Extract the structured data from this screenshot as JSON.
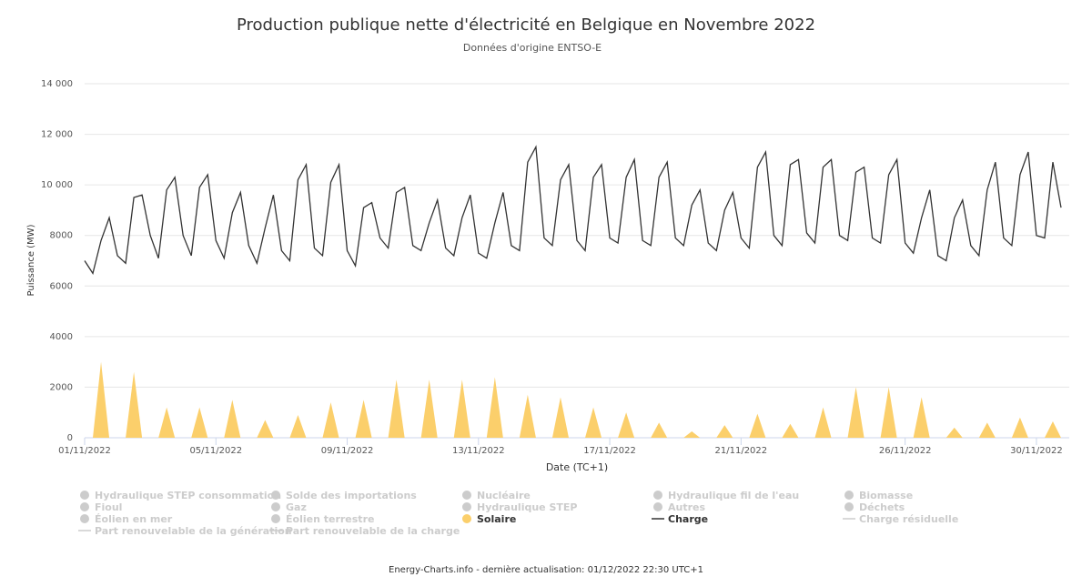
{
  "chart_data": {
    "type": "line",
    "title": "Production publique nette d'électricité en Belgique en Novembre 2022",
    "subtitle": "Données d'origine ENTSO-E",
    "xlabel": "Date (TC+1)",
    "ylabel": "Puissance (MW)",
    "footer": "Energy-Charts.info - dernière actualisation: 01/12/2022 22:30 UTC+1",
    "grid": true,
    "xlim": [
      1,
      31
    ],
    "xticks": [
      {
        "value": 1,
        "label": "01/11/2022"
      },
      {
        "value": 5,
        "label": "05/11/2022"
      },
      {
        "value": 9,
        "label": "09/11/2022"
      },
      {
        "value": 13,
        "label": "13/11/2022"
      },
      {
        "value": 17,
        "label": "17/11/2022"
      },
      {
        "value": 21,
        "label": "21/11/2022"
      },
      {
        "value": 26,
        "label": "26/11/2022"
      },
      {
        "value": 30,
        "label": "30/11/2022"
      }
    ],
    "ylim": [
      0,
      14000
    ],
    "yticks": [
      0,
      {
        "value": 2000,
        "label": "2000"
      },
      {
        "value": 4000,
        "label": "4000"
      },
      {
        "value": 6000,
        "label": "6000"
      },
      {
        "value": 8000,
        "label": "8000"
      },
      {
        "value": 10000,
        "label": "10 000"
      },
      {
        "value": 12000,
        "label": "12 000"
      },
      {
        "value": 14000,
        "label": "14 000"
      }
    ],
    "x": [
      1,
      1.25,
      1.5,
      1.75,
      2,
      2.25,
      2.5,
      2.75,
      3,
      3.25,
      3.5,
      3.75,
      4,
      4.25,
      4.5,
      4.75,
      5,
      5.25,
      5.5,
      5.75,
      6,
      6.25,
      6.5,
      6.75,
      7,
      7.25,
      7.5,
      7.75,
      8,
      8.25,
      8.5,
      8.75,
      9,
      9.25,
      9.5,
      9.75,
      10,
      10.25,
      10.5,
      10.75,
      11,
      11.25,
      11.5,
      11.75,
      12,
      12.25,
      12.5,
      12.75,
      13,
      13.25,
      13.5,
      13.75,
      14,
      14.25,
      14.5,
      14.75,
      15,
      15.25,
      15.5,
      15.75,
      16,
      16.25,
      16.5,
      16.75,
      17,
      17.25,
      17.5,
      17.75,
      18,
      18.25,
      18.5,
      18.75,
      19,
      19.25,
      19.5,
      19.75,
      20,
      20.25,
      20.5,
      20.75,
      21,
      21.25,
      21.5,
      21.75,
      22,
      22.25,
      22.5,
      22.75,
      23,
      23.25,
      23.5,
      23.75,
      24,
      24.25,
      24.5,
      24.75,
      25,
      25.25,
      25.5,
      25.75,
      26,
      26.25,
      26.5,
      26.75,
      27,
      27.25,
      27.5,
      27.75,
      28,
      28.25,
      28.5,
      28.75,
      29,
      29.25,
      29.5,
      29.75,
      30,
      30.25,
      30.5,
      30.75
    ],
    "series": [
      {
        "name": "Hydraulique STEP consommation",
        "marker": "dot",
        "visible": false,
        "color": "#cccccc"
      },
      {
        "name": "Solde des importations",
        "marker": "dot",
        "visible": false,
        "color": "#cccccc"
      },
      {
        "name": "Nucléaire",
        "marker": "dot",
        "visible": false,
        "color": "#cccccc"
      },
      {
        "name": "Hydraulique fil de l'eau",
        "marker": "dot",
        "visible": false,
        "color": "#cccccc"
      },
      {
        "name": "Biomasse",
        "marker": "dot",
        "visible": false,
        "color": "#cccccc"
      },
      {
        "name": "Fioul",
        "marker": "dot",
        "visible": false,
        "color": "#cccccc"
      },
      {
        "name": "Gaz",
        "marker": "dot",
        "visible": false,
        "color": "#cccccc"
      },
      {
        "name": "Hydraulique STEP",
        "marker": "dot",
        "visible": false,
        "color": "#cccccc"
      },
      {
        "name": "Autres",
        "marker": "dot",
        "visible": false,
        "color": "#cccccc"
      },
      {
        "name": "Déchets",
        "marker": "dot",
        "visible": false,
        "color": "#cccccc"
      },
      {
        "name": "Éolien en mer",
        "marker": "dot",
        "visible": false,
        "color": "#cccccc"
      },
      {
        "name": "Éolien terrestre",
        "marker": "dot",
        "visible": false,
        "color": "#cccccc"
      },
      {
        "name": "Solaire",
        "marker": "dot",
        "visible": true,
        "color": "#fbcf6b",
        "kind": "area",
        "values": [
          0,
          0,
          3000,
          0,
          0,
          0,
          2600,
          0,
          0,
          0,
          1200,
          0,
          0,
          0,
          1200,
          0,
          0,
          0,
          1500,
          0,
          0,
          0,
          700,
          0,
          0,
          0,
          900,
          0,
          0,
          0,
          1400,
          0,
          0,
          0,
          1500,
          0,
          0,
          0,
          2300,
          0,
          0,
          0,
          2300,
          0,
          0,
          0,
          2300,
          0,
          0,
          0,
          2400,
          0,
          0,
          0,
          1700,
          0,
          0,
          0,
          1600,
          0,
          0,
          0,
          1200,
          0,
          0,
          0,
          1000,
          0,
          0,
          0,
          600,
          0,
          0,
          0,
          250,
          0,
          0,
          0,
          500,
          0,
          0,
          0,
          950,
          0,
          0,
          0,
          550,
          0,
          0,
          0,
          1200,
          0,
          0,
          0,
          2000,
          0,
          0,
          0,
          2000,
          0,
          0,
          0,
          1600,
          0,
          0,
          0,
          400,
          0,
          0,
          0,
          600,
          0,
          0,
          0,
          800,
          0,
          0,
          0,
          650,
          0
        ]
      },
      {
        "name": "Charge",
        "marker": "line",
        "visible": true,
        "color": "#333333",
        "kind": "line",
        "values": [
          7000,
          6500,
          7800,
          8700,
          7200,
          6900,
          9500,
          9600,
          8000,
          7100,
          9800,
          10300,
          8000,
          7200,
          9900,
          10400,
          7800,
          7100,
          8900,
          9700,
          7600,
          6900,
          8300,
          9600,
          7400,
          7000,
          10200,
          10800,
          7500,
          7200,
          10100,
          10800,
          7400,
          6800,
          9100,
          9300,
          7900,
          7500,
          9700,
          9900,
          7600,
          7400,
          8500,
          9400,
          7500,
          7200,
          8700,
          9600,
          7300,
          7100,
          8500,
          9700,
          7600,
          7400,
          10900,
          11500,
          7900,
          7600,
          10200,
          10800,
          7800,
          7400,
          10300,
          10800,
          7900,
          7700,
          10300,
          11000,
          7800,
          7600,
          10300,
          10900,
          7900,
          7600,
          9200,
          9800,
          7700,
          7400,
          9000,
          9700,
          7900,
          7500,
          10700,
          11300,
          8000,
          7600,
          10800,
          11000,
          8100,
          7700,
          10700,
          11000,
          8000,
          7800,
          10500,
          10700,
          7900,
          7700,
          10400,
          11000,
          7700,
          7300,
          8700,
          9800,
          7200,
          7000,
          8700,
          9400,
          7600,
          7200,
          9800,
          10900,
          7900,
          7600,
          10400,
          11300,
          8000,
          7900,
          10900,
          9100
        ]
      },
      {
        "name": "Charge résiduelle",
        "marker": "line",
        "visible": false,
        "color": "#cccccc"
      },
      {
        "name": "Part renouvelable de la génération",
        "marker": "line",
        "visible": false,
        "color": "#cccccc"
      },
      {
        "name": "Part renouvelable de la charge",
        "marker": "line",
        "visible": false,
        "color": "#cccccc"
      }
    ]
  }
}
